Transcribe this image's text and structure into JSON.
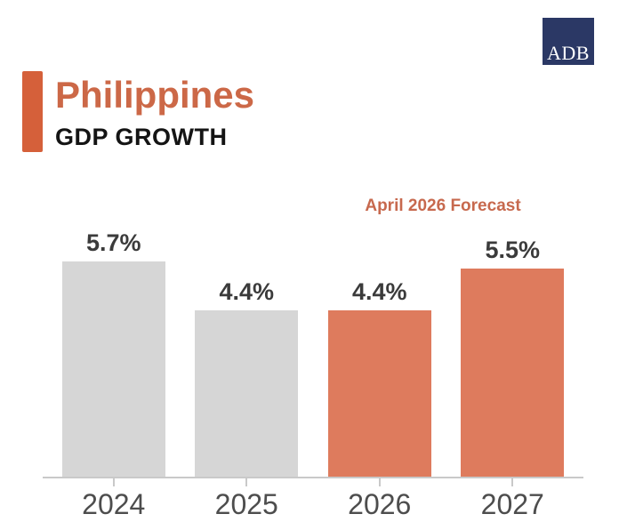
{
  "logo": {
    "text": "ADB",
    "background_color": "#2b3865",
    "text_color": "#ffffff"
  },
  "header": {
    "title": "Philippines",
    "subtitle": "GDP GROWTH",
    "accent_color": "#d5603a",
    "title_color": "#cc6847",
    "subtitle_color": "#141414"
  },
  "chart_data": {
    "type": "bar",
    "title": "Philippines GDP GROWTH",
    "annotation": "April 2026 Forecast",
    "annotation_color": "#c7694e",
    "categories": [
      "2024",
      "2025",
      "2026",
      "2027"
    ],
    "values": [
      5.7,
      4.4,
      4.4,
      5.5
    ],
    "value_labels": [
      "5.7%",
      "4.4%",
      "4.4%",
      "5.5%"
    ],
    "forecast": [
      false,
      false,
      true,
      true
    ],
    "bar_color_actual": "#d6d6d6",
    "bar_color_forecast": "#de7b5d",
    "axis_color": "#c9c9c9",
    "value_label_color": "#3b3b3b",
    "category_label_color": "#4d4d4d",
    "ylim": [
      0,
      6.6
    ],
    "xlabel": "",
    "ylabel": "",
    "grid": false,
    "legend": false
  }
}
